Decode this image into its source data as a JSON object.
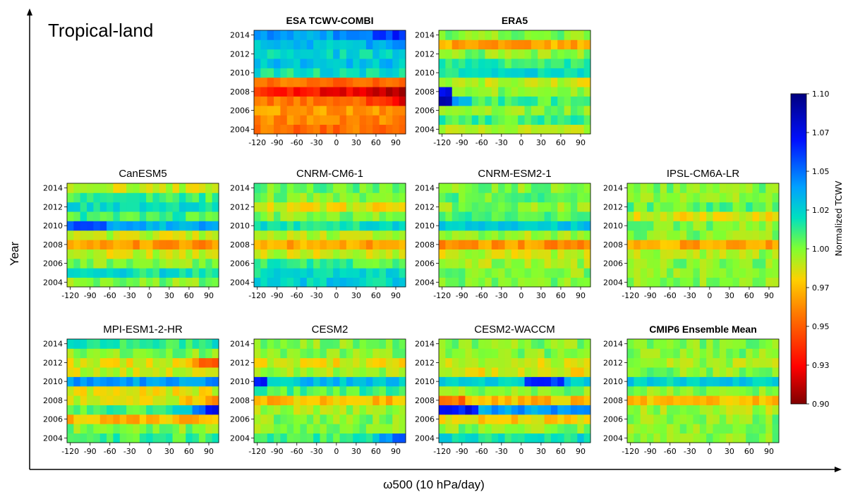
{
  "region_label": "Tropical-land",
  "xlabel_main": "ω500 (10 hPa/day)",
  "ylabel_main": "Year",
  "colorbar": {
    "label": "Normalized TCWV",
    "ticks": [
      "1.10",
      "1.07",
      "1.05",
      "1.02",
      "1.00",
      "0.97",
      "0.95",
      "0.93",
      "0.90"
    ],
    "min": 0.9,
    "max": 1.1
  },
  "chart_data": {
    "type": "heatmap",
    "x_ticks": [
      "-120",
      "-90",
      "-60",
      "-30",
      "0",
      "30",
      "60",
      "90"
    ],
    "y_ticks": [
      "2014",
      "2012",
      "2010",
      "2008",
      "2006",
      "2004"
    ],
    "x_range": [
      -125,
      105
    ],
    "y_range": [
      2003.5,
      2014.5
    ],
    "panels": [
      {
        "title": "ESA TCWV-COMBI",
        "bold": true,
        "pattern": "esa"
      },
      {
        "title": "ERA5",
        "bold": true,
        "pattern": "era5"
      },
      {
        "title": "CanESM5",
        "bold": false,
        "pattern": "canesm5"
      },
      {
        "title": "CNRM-CM6-1",
        "bold": false,
        "pattern": "cnrmcm6"
      },
      {
        "title": "CNRM-ESM2-1",
        "bold": false,
        "pattern": "cnrmesm2"
      },
      {
        "title": "IPSL-CM6A-LR",
        "bold": false,
        "pattern": "ipsl"
      },
      {
        "title": "MPI-ESM1-2-HR",
        "bold": false,
        "pattern": "mpi"
      },
      {
        "title": "CESM2",
        "bold": false,
        "pattern": "cesm2"
      },
      {
        "title": "CESM2-WACCM",
        "bold": false,
        "pattern": "waccm"
      },
      {
        "title": "CMIP6 Ensemble Mean",
        "bold": true,
        "pattern": "mean"
      }
    ]
  }
}
